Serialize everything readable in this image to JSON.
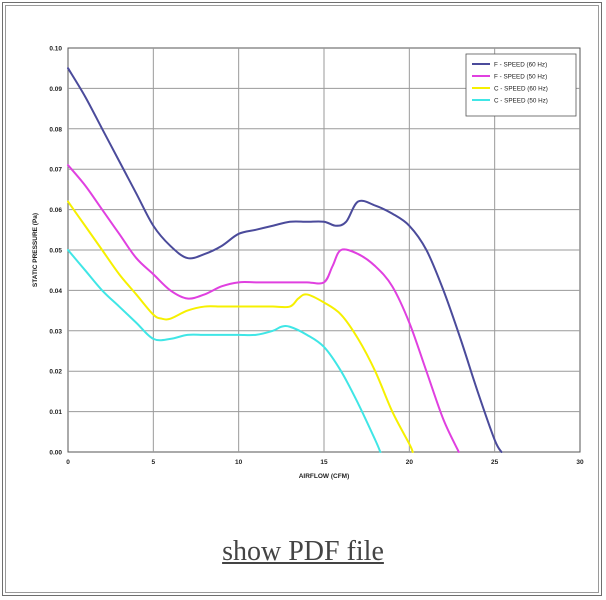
{
  "link": {
    "label": "show PDF file"
  },
  "chart_data": {
    "type": "line",
    "title": "",
    "xlabel": "AIRFLOW (CFM)",
    "ylabel": "STATIC PRESSURE (Pa)",
    "xlim": [
      0,
      30
    ],
    "ylim": [
      0.0,
      0.1
    ],
    "xticks": [
      0,
      5,
      10,
      15,
      20,
      25,
      30
    ],
    "yticks": [
      0.0,
      0.01,
      0.02,
      0.03,
      0.04,
      0.05,
      0.06,
      0.07,
      0.08,
      0.09,
      0.1
    ],
    "xtick_labels": [
      "0",
      "5",
      "10",
      "15",
      "20",
      "25",
      "30"
    ],
    "ytick_labels": [
      "0.00",
      "0.01",
      "0.02",
      "0.03",
      "0.04",
      "0.05",
      "0.06",
      "0.07",
      "0.08",
      "0.09",
      "0.10"
    ],
    "grid": true,
    "legend_position": "top-right",
    "series": [
      {
        "name": "F - SPEED (60 Hz)",
        "color": "#4b4b9b",
        "x": [
          0,
          1,
          2,
          3,
          4,
          5,
          6,
          7,
          8,
          9,
          10,
          11,
          12,
          13,
          14,
          15,
          15.7,
          16.3,
          17,
          18,
          19,
          20,
          21,
          22,
          23,
          24,
          25,
          25.4
        ],
        "y": [
          0.095,
          0.088,
          0.08,
          0.072,
          0.064,
          0.056,
          0.051,
          0.048,
          0.049,
          0.051,
          0.054,
          0.055,
          0.056,
          0.057,
          0.057,
          0.057,
          0.056,
          0.057,
          0.062,
          0.061,
          0.059,
          0.056,
          0.05,
          0.04,
          0.028,
          0.015,
          0.003,
          0.0
        ]
      },
      {
        "name": "F - SPEED (50 Hz)",
        "color": "#e040e0",
        "x": [
          0,
          1,
          2,
          3,
          4,
          5,
          6,
          7,
          8,
          9,
          10,
          11,
          12,
          13,
          14,
          15,
          15.5,
          16,
          17,
          18,
          19,
          20,
          21,
          22,
          22.9
        ],
        "y": [
          0.071,
          0.066,
          0.06,
          0.054,
          0.048,
          0.044,
          0.04,
          0.038,
          0.039,
          0.041,
          0.042,
          0.042,
          0.042,
          0.042,
          0.042,
          0.042,
          0.046,
          0.05,
          0.049,
          0.046,
          0.041,
          0.032,
          0.02,
          0.008,
          0.0
        ]
      },
      {
        "name": "C - SPEED (60 Hz)",
        "color": "#f6f000",
        "x": [
          0,
          1,
          2,
          3,
          4,
          5,
          5.5,
          6,
          7,
          8,
          9,
          10,
          11,
          12,
          13,
          13.5,
          14,
          15,
          16,
          17,
          18,
          19,
          20,
          20.2
        ],
        "y": [
          0.062,
          0.056,
          0.05,
          0.044,
          0.039,
          0.034,
          0.033,
          0.033,
          0.035,
          0.036,
          0.036,
          0.036,
          0.036,
          0.036,
          0.036,
          0.038,
          0.039,
          0.037,
          0.034,
          0.028,
          0.02,
          0.01,
          0.002,
          0.0
        ]
      },
      {
        "name": "C - SPEED (50 Hz)",
        "color": "#40e6e6",
        "x": [
          0,
          1,
          2,
          3,
          4,
          5,
          6,
          7,
          8,
          9,
          10,
          11,
          12,
          12.5,
          13,
          14,
          15,
          16,
          17,
          18,
          18.3
        ],
        "y": [
          0.05,
          0.045,
          0.04,
          0.036,
          0.032,
          0.028,
          0.028,
          0.029,
          0.029,
          0.029,
          0.029,
          0.029,
          0.03,
          0.031,
          0.031,
          0.029,
          0.026,
          0.02,
          0.012,
          0.003,
          0.0
        ]
      }
    ]
  }
}
